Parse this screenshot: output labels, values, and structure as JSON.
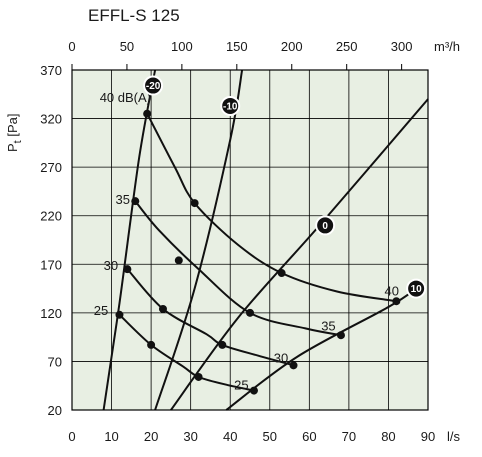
{
  "page": {
    "title": "EFFL-S 125"
  },
  "chart_data": {
    "type": "line",
    "title": "EFFL-S 125",
    "ylabel": "P_t [Pa]",
    "ylabel_main": "P",
    "ylabel_sub": "t",
    "ylabel_unit": " [Pa]",
    "xlabel": "l/s",
    "x2label": "m³/h",
    "xlim": [
      0,
      90
    ],
    "ylim": [
      20,
      370
    ],
    "x_ticks": [
      0,
      10,
      20,
      30,
      40,
      50,
      60,
      70,
      80,
      90
    ],
    "y_ticks": [
      20,
      70,
      120,
      170,
      220,
      270,
      320,
      370
    ],
    "x2_ticks": [
      0,
      50,
      100,
      150,
      200,
      250,
      300
    ],
    "grid": true,
    "colors": {
      "background": "#e8efe3",
      "grid": "#000000",
      "curve": "#111111",
      "badge": "#111111"
    },
    "damper_curves": [
      {
        "setting": "-20",
        "points": [
          [
            8,
            20
          ],
          [
            12,
            130
          ],
          [
            17,
            280
          ],
          [
            21,
            370
          ]
        ],
        "badge_at": [
          20.5,
          354
        ]
      },
      {
        "setting": "-10",
        "points": [
          [
            21,
            20
          ],
          [
            31,
            145
          ],
          [
            40,
            298
          ],
          [
            43,
            370
          ]
        ],
        "badge_at": [
          40,
          333
        ]
      },
      {
        "setting": "0",
        "points": [
          [
            25,
            20
          ],
          [
            42,
            115
          ],
          [
            63,
            212
          ],
          [
            90,
            340
          ]
        ],
        "badge_at": [
          64,
          210
        ]
      },
      {
        "setting": "10",
        "points": [
          [
            39,
            20
          ],
          [
            57,
            75
          ],
          [
            80,
            126
          ],
          [
            87,
            145
          ]
        ],
        "badge_at": [
          87,
          145
        ]
      }
    ],
    "sound_curves": [
      {
        "label": "40 dB(A)",
        "label_at": [
          7,
          341
        ],
        "end_label": "40",
        "end_label_at": [
          79,
          142
        ],
        "points": [
          [
            19,
            325
          ],
          [
            26,
            270
          ],
          [
            31,
            233
          ],
          [
            42,
            190
          ],
          [
            53,
            161
          ],
          [
            67,
            142
          ],
          [
            82,
            132
          ]
        ]
      },
      {
        "label": "35",
        "label_at": [
          11,
          236
        ],
        "end_label": "35",
        "end_label_at": [
          63,
          106
        ],
        "points": [
          [
            16,
            235
          ],
          [
            22,
            205
          ],
          [
            32,
            165
          ],
          [
            45,
            120
          ],
          [
            59,
            104
          ],
          [
            68,
            97
          ]
        ]
      },
      {
        "label": "30",
        "label_at": [
          8,
          168
        ],
        "end_label": "30",
        "end_label_at": [
          51,
          73
        ],
        "points": [
          [
            14,
            165
          ],
          [
            23,
            124
          ],
          [
            34,
            98
          ],
          [
            38,
            87
          ],
          [
            47,
            76
          ],
          [
            56,
            66
          ]
        ]
      },
      {
        "label": "25",
        "label_at": [
          5.5,
          122
        ],
        "end_label": "25",
        "end_label_at": [
          41,
          45
        ],
        "points": [
          [
            12,
            118
          ],
          [
            20,
            87
          ],
          [
            28,
            65
          ],
          [
            32,
            54
          ],
          [
            39,
            46
          ],
          [
            46,
            40
          ]
        ]
      }
    ],
    "operating_points": [
      [
        19,
        325
      ],
      [
        16,
        235
      ],
      [
        14,
        165
      ],
      [
        12,
        118
      ],
      [
        31,
        233
      ],
      [
        27,
        174
      ],
      [
        23,
        124
      ],
      [
        20,
        87
      ],
      [
        53,
        161
      ],
      [
        45,
        120
      ],
      [
        38,
        87
      ],
      [
        32,
        54
      ],
      [
        82,
        132
      ],
      [
        68,
        97
      ],
      [
        56,
        66
      ],
      [
        46,
        40
      ]
    ]
  }
}
